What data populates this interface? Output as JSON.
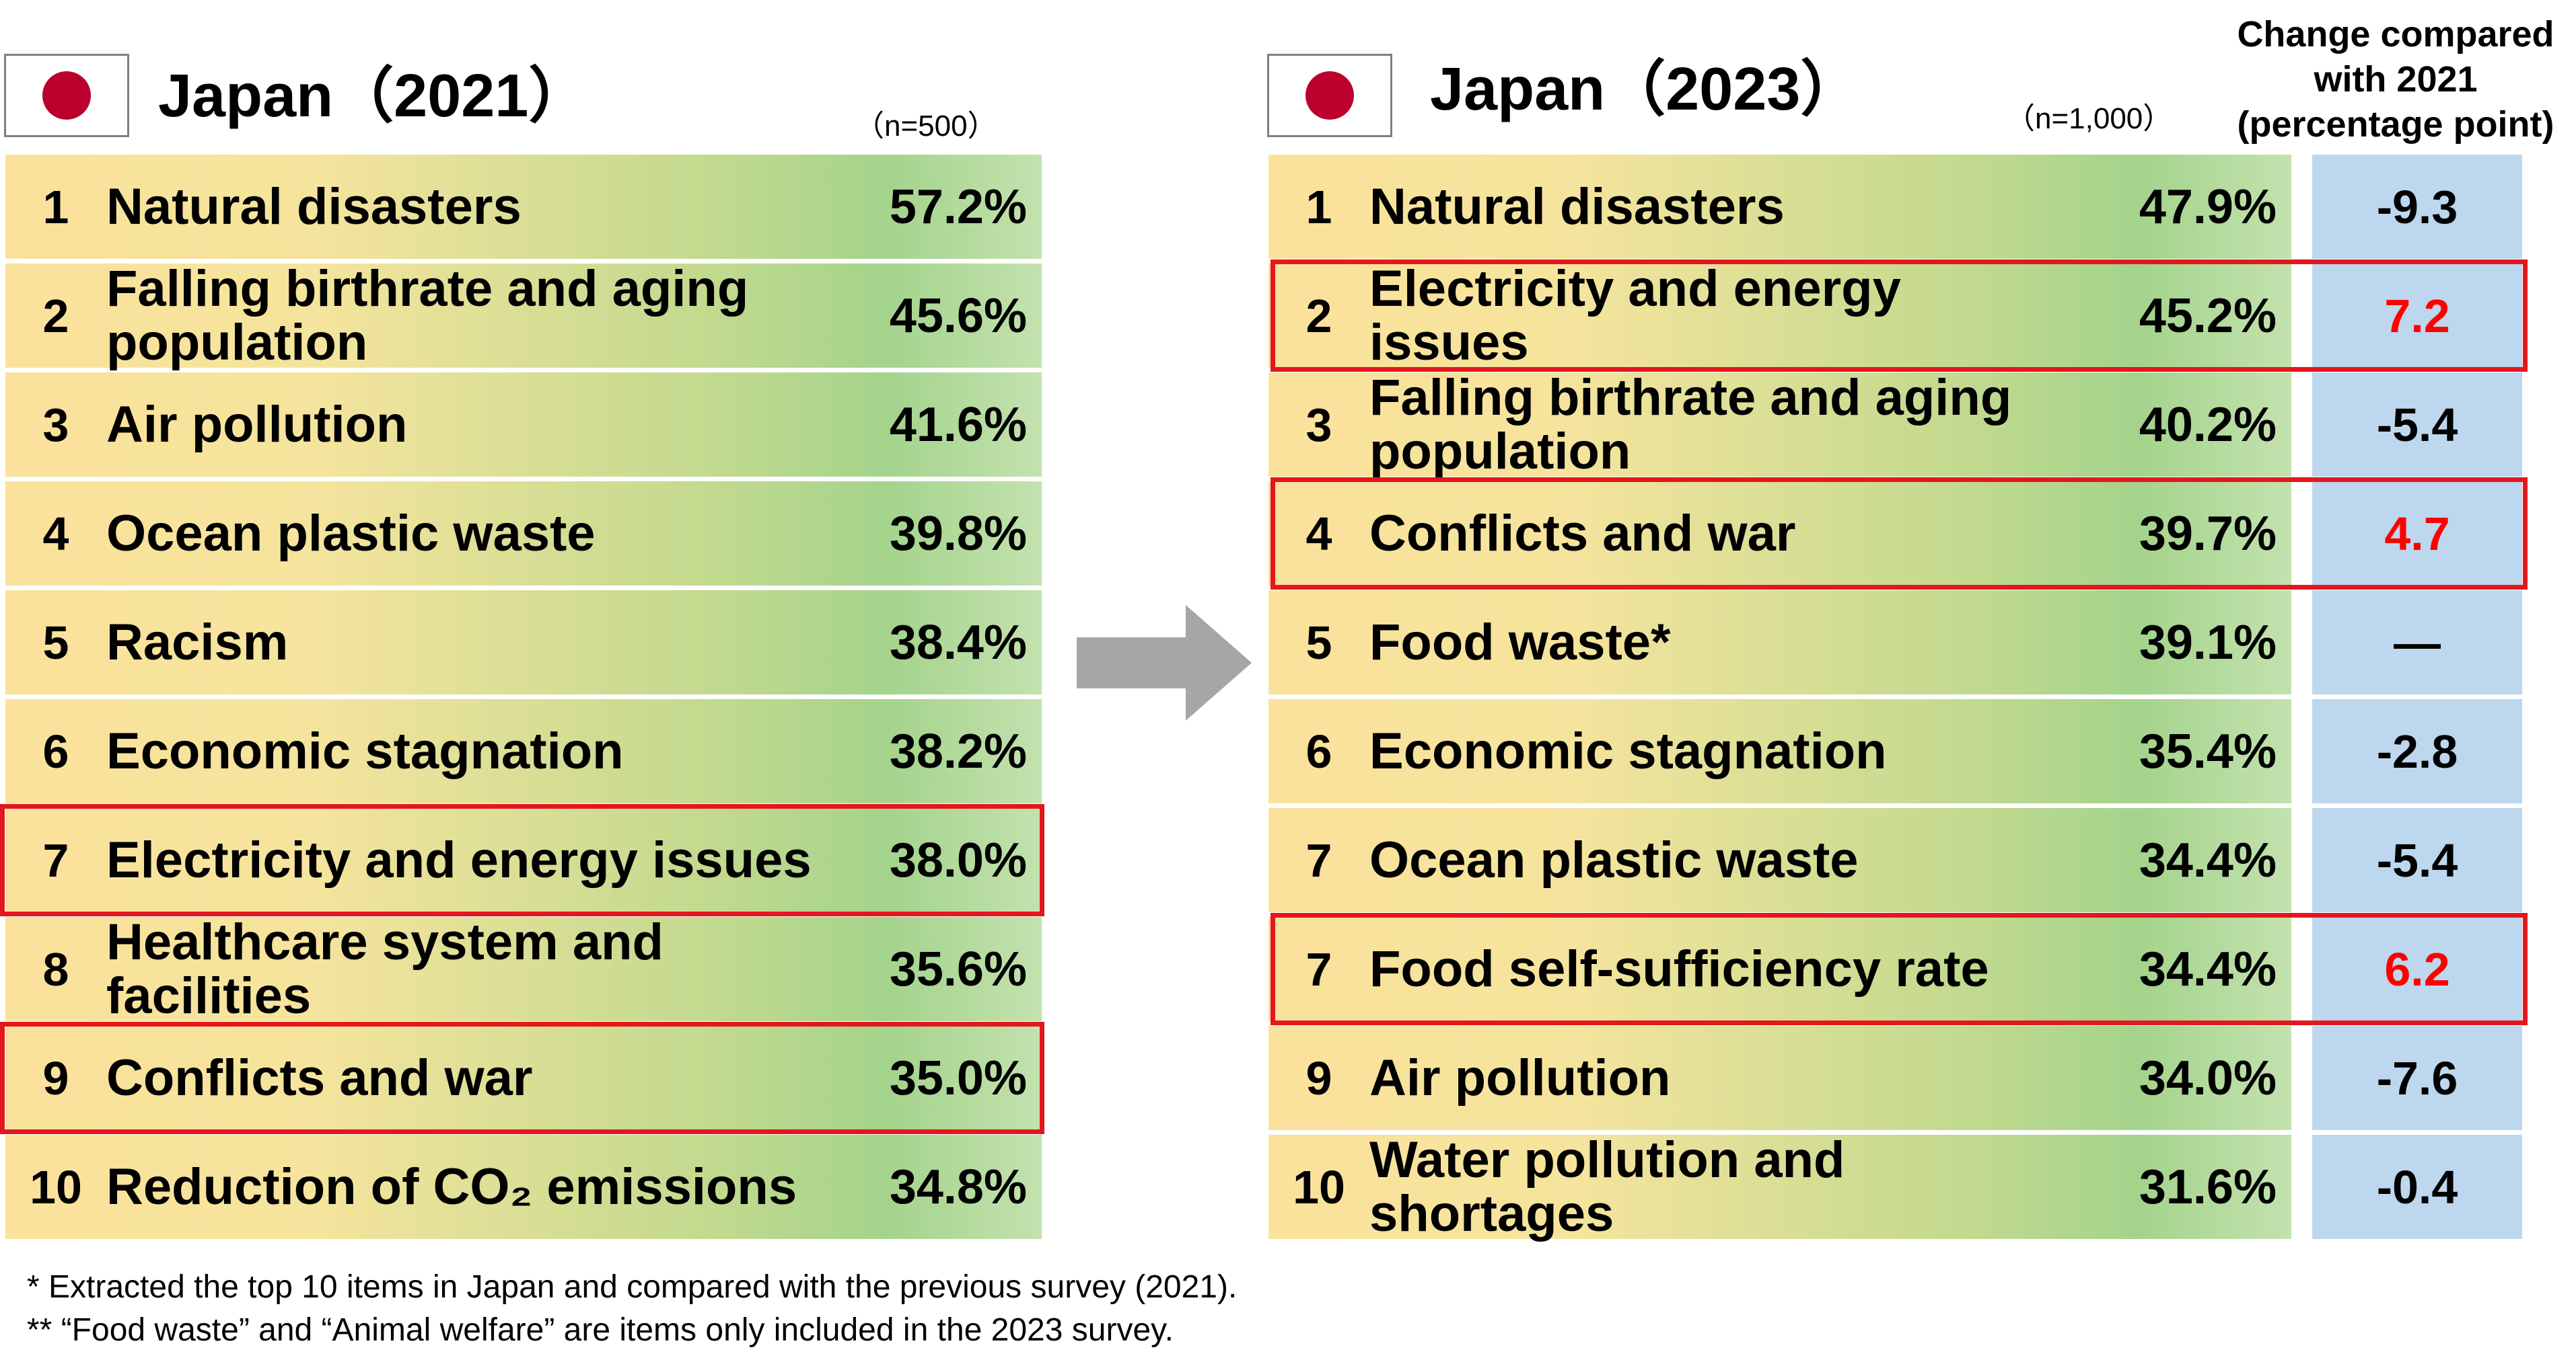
{
  "chart_data": [
    {
      "type": "table",
      "title": "Japan（2021）",
      "sample": "（n=500）",
      "rows": [
        {
          "rank": "1",
          "label": "Natural disasters",
          "value": "57.2%"
        },
        {
          "rank": "2",
          "label": "Falling birthrate and aging population",
          "value": "45.6%"
        },
        {
          "rank": "3",
          "label": "Air pollution",
          "value": "41.6%"
        },
        {
          "rank": "4",
          "label": "Ocean plastic waste",
          "value": "39.8%"
        },
        {
          "rank": "5",
          "label": "Racism",
          "value": "38.4%"
        },
        {
          "rank": "6",
          "label": "Economic stagnation",
          "value": "38.2%"
        },
        {
          "rank": "7",
          "label": "Electricity and energy issues",
          "value": "38.0%"
        },
        {
          "rank": "8",
          "label": "Healthcare system and facilities",
          "value": "35.6%"
        },
        {
          "rank": "9",
          "label": "Conflicts and war",
          "value": "35.0%"
        },
        {
          "rank": "10",
          "label": "Reduction of CO₂ emissions",
          "value": "34.8%"
        }
      ],
      "highlighted_ranks": [
        "7",
        "9"
      ]
    },
    {
      "type": "table",
      "title": "Japan（2023）",
      "sample": "（n=1,000）",
      "change_header": "Change compared with 2021 (percentage point)",
      "rows": [
        {
          "rank": "1",
          "label": "Natural disasters",
          "value": "47.9%",
          "change": "-9.3"
        },
        {
          "rank": "2",
          "label": "Electricity and energy issues",
          "value": "45.2%",
          "change": "7.2"
        },
        {
          "rank": "3",
          "label": "Falling birthrate and aging population",
          "value": "40.2%",
          "change": "-5.4"
        },
        {
          "rank": "4",
          "label": "Conflicts and war",
          "value": "39.7%",
          "change": "4.7"
        },
        {
          "rank": "5",
          "label": "Food waste*",
          "value": "39.1%",
          "change": "—"
        },
        {
          "rank": "6",
          "label": "Economic stagnation",
          "value": "35.4%",
          "change": "-2.8"
        },
        {
          "rank": "7",
          "label": "Ocean plastic waste",
          "value": "34.4%",
          "change": "-5.4"
        },
        {
          "rank": "7",
          "label": "Food self-sufficiency rate",
          "value": "34.4%",
          "change": "6.2"
        },
        {
          "rank": "9",
          "label": "Air pollution",
          "value": "34.0%",
          "change": "-7.6"
        },
        {
          "rank": "10",
          "label": "Water pollution and shortages",
          "value": "31.6%",
          "change": "-0.4"
        }
      ],
      "highlighted_rows": [
        2,
        4,
        8
      ]
    }
  ],
  "notes": [
    "*   Extracted the top 10 items in Japan and compared with the previous survey (2021).",
    "**   “Food waste” and “Animal welfare” are items only included in the 2023 survey."
  ],
  "colors": {
    "flag_red": "#bc002d",
    "highlight_border": "#e3171e",
    "positive_change": "#ff0000",
    "change_column": "#bdd7ee",
    "arrow": "#a6a6a6"
  }
}
